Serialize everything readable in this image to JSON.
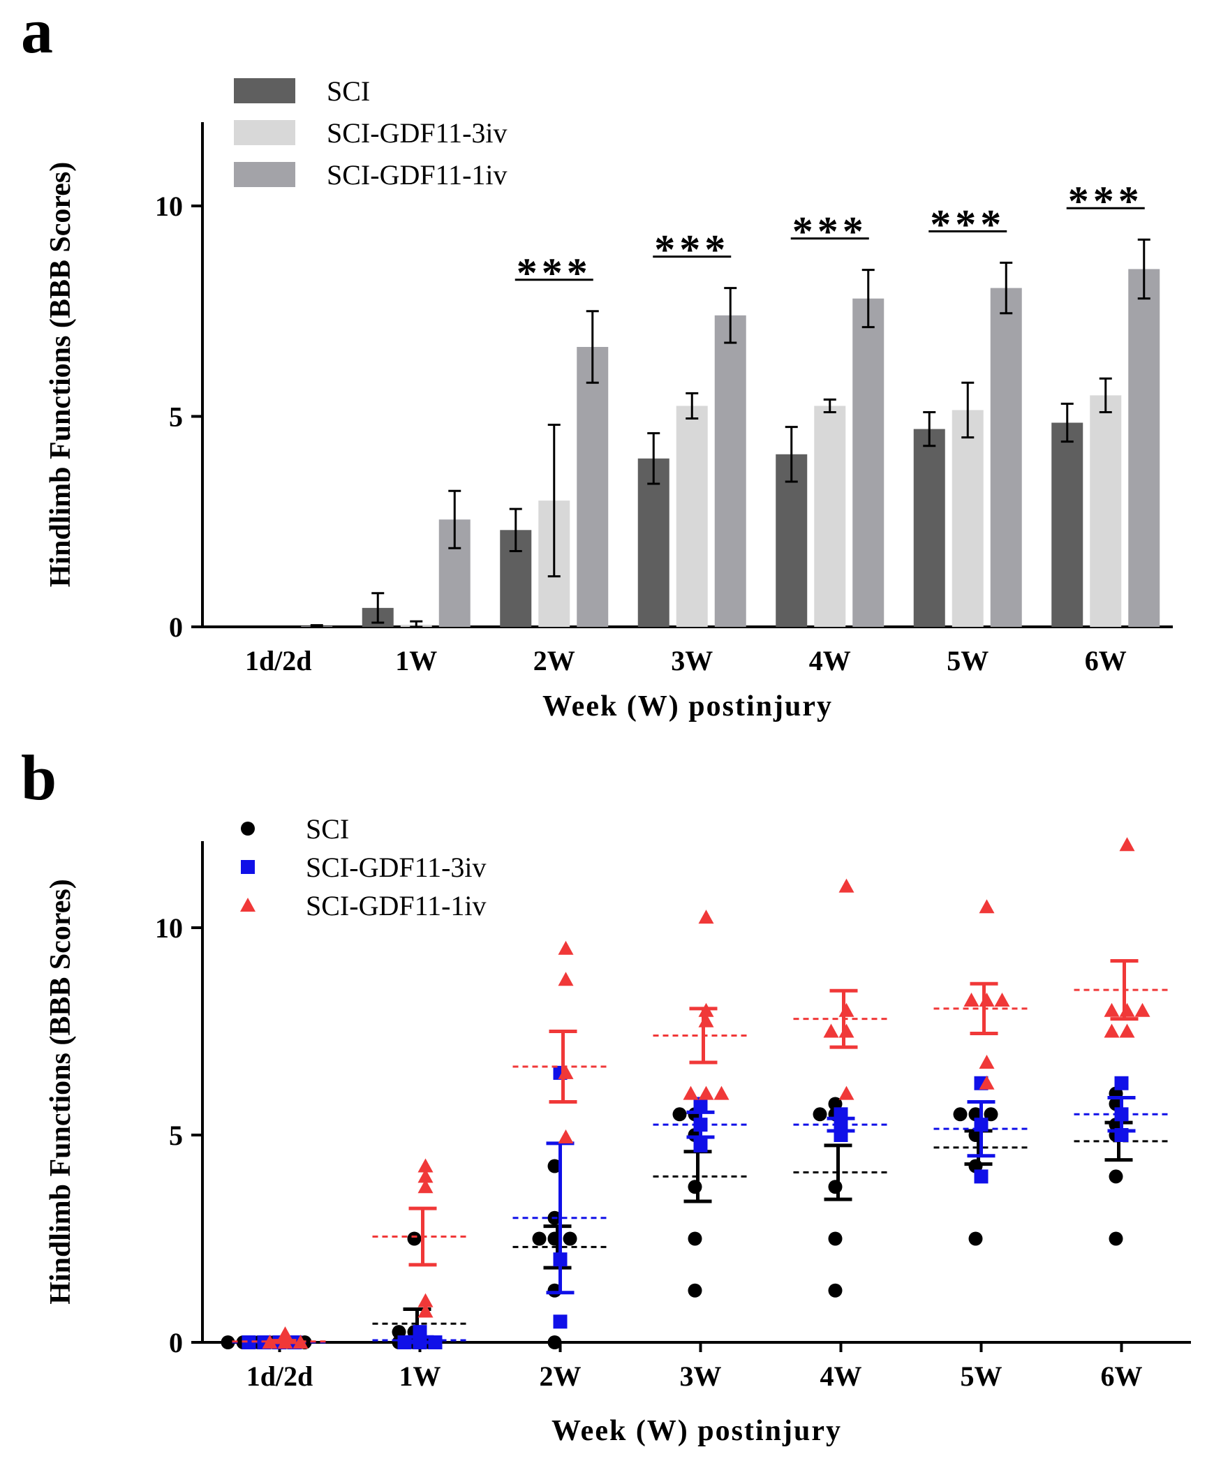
{
  "chart_data": [
    {
      "panel": "a",
      "type": "bar",
      "categories": [
        "1d/2d",
        "1W",
        "2W",
        "3W",
        "4W",
        "5W",
        "6W"
      ],
      "series": [
        {
          "name": "SCI",
          "color": "#5f5f5f",
          "values": [
            0,
            0.45,
            2.3,
            4.0,
            4.1,
            4.7,
            4.85
          ],
          "errors": [
            0,
            0.35,
            0.5,
            0.6,
            0.65,
            0.4,
            0.45
          ]
        },
        {
          "name": "SCI-GDF11-3iv",
          "color": "#d8d8d8",
          "values": [
            0,
            0.05,
            3.0,
            5.25,
            5.25,
            5.15,
            5.5
          ],
          "errors": [
            0,
            0.08,
            1.8,
            0.3,
            0.15,
            0.65,
            0.4
          ]
        },
        {
          "name": "SCI-GDF11-1iv",
          "color": "#a3a3a8",
          "values": [
            0.02,
            2.55,
            6.65,
            7.4,
            7.8,
            8.05,
            8.5
          ],
          "errors": [
            0.02,
            0.68,
            0.85,
            0.65,
            0.68,
            0.6,
            0.7
          ]
        }
      ],
      "significance": [
        {
          "category": "2W",
          "label": "***"
        },
        {
          "category": "3W",
          "label": "***"
        },
        {
          "category": "4W",
          "label": "***"
        },
        {
          "category": "5W",
          "label": "***"
        },
        {
          "category": "6W",
          "label": "***"
        }
      ],
      "ylabel": "Hindlimb Functions (BBB Scores)",
      "xlabel": "Week (W) postinjury",
      "ylim": [
        0,
        12
      ],
      "yticks": [
        0,
        5,
        10
      ],
      "legend_position": "top-left"
    },
    {
      "panel": "b",
      "type": "scatter",
      "categories": [
        "1d/2d",
        "1W",
        "2W",
        "3W",
        "4W",
        "5W",
        "6W"
      ],
      "series": [
        {
          "name": "SCI",
          "color": "#000000",
          "marker": "circle",
          "points": [
            [
              0,
              0
            ],
            [
              0,
              0
            ],
            [
              0,
              0
            ],
            [
              0,
              0
            ],
            [
              0,
              0
            ],
            [
              0,
              0
            ],
            [
              0.25,
              0
            ],
            [
              0,
              0
            ],
            [
              0,
              0
            ],
            [
              0,
              0
            ],
            [
              2.5,
              0
            ],
            [
              0.25,
              0
            ],
            [
              2.5,
              0
            ],
            [
              2.5,
              0
            ],
            [
              3.0,
              0
            ],
            [
              2.5,
              0
            ],
            [
              1.25,
              0
            ],
            [
              0,
              0
            ],
            [
              4.25,
              0
            ],
            [
              5.5,
              0
            ],
            [
              5.5,
              0
            ],
            [
              5.0,
              0
            ],
            [
              3.75,
              0
            ],
            [
              2.5,
              0
            ],
            [
              1.25,
              0
            ],
            [
              5.5,
              0
            ],
            [
              5.75,
              0
            ],
            [
              5.5,
              0
            ],
            [
              3.75,
              0
            ],
            [
              2.5,
              0
            ],
            [
              1.25,
              0
            ],
            [
              5.5,
              0
            ],
            [
              5.5,
              0
            ],
            [
              5.0,
              0
            ],
            [
              5.5,
              0
            ],
            [
              4.25,
              0
            ],
            [
              2.5,
              0
            ],
            [
              6.0,
              0
            ],
            [
              5.75,
              0
            ],
            [
              5.25,
              0
            ],
            [
              5.0,
              0
            ],
            [
              4.0,
              0
            ],
            [
              2.5,
              0
            ]
          ],
          "point_groups": [
            [
              0,
              0,
              0,
              0,
              0,
              0
            ],
            [
              0.25,
              0,
              0,
              0,
              2.5,
              0.25
            ],
            [
              2.5,
              2.5,
              3.0,
              2.5,
              1.25,
              0,
              4.25
            ],
            [
              5.5,
              5.5,
              5.0,
              3.75,
              2.5,
              1.25
            ],
            [
              5.5,
              5.75,
              5.5,
              3.75,
              2.5,
              1.25
            ],
            [
              5.5,
              5.5,
              5.0,
              5.5,
              4.25,
              2.5
            ],
            [
              6.0,
              5.75,
              5.25,
              5.0,
              4.0,
              2.5
            ]
          ],
          "mean": [
            0,
            0.45,
            2.3,
            4.0,
            4.1,
            4.7,
            4.85
          ],
          "sem": [
            0,
            0.35,
            0.5,
            0.6,
            0.65,
            0.4,
            0.45
          ]
        },
        {
          "name": "SCI-GDF11-3iv",
          "color": "#1010e8",
          "marker": "square",
          "point_groups": [
            [
              0,
              0,
              0,
              0
            ],
            [
              0.25,
              0,
              0,
              0
            ],
            [
              6.5,
              2.0,
              0.5
            ],
            [
              5.75,
              5.25,
              4.75
            ],
            [
              5.5,
              5.25,
              5.0
            ],
            [
              6.25,
              5.25,
              4.0
            ],
            [
              6.25,
              5.5,
              5.0
            ]
          ],
          "mean": [
            0,
            0.05,
            3.0,
            5.25,
            5.25,
            5.15,
            5.5
          ],
          "sem": [
            0,
            0.08,
            1.8,
            0.3,
            0.15,
            0.65,
            0.4
          ]
        },
        {
          "name": "SCI-GDF11-1iv",
          "color": "#f03838",
          "marker": "triangle",
          "point_groups": [
            [
              0.2,
              0,
              0,
              0
            ],
            [
              4.25,
              4.0,
              3.75,
              1.0,
              0.75
            ],
            [
              9.5,
              8.75,
              6.5,
              4.95
            ],
            [
              10.25,
              8.0,
              7.75,
              6.0,
              6.0,
              6.0
            ],
            [
              11.0,
              8.0,
              7.5,
              7.5,
              6.0
            ],
            [
              10.5,
              8.25,
              8.25,
              8.25,
              6.75,
              6.25
            ],
            [
              12.0,
              8.0,
              8.0,
              8.0,
              7.5,
              7.5
            ]
          ],
          "mean": [
            0.02,
            2.55,
            6.65,
            7.4,
            7.8,
            8.05,
            8.5
          ],
          "sem": [
            0.02,
            0.68,
            0.85,
            0.65,
            0.68,
            0.6,
            0.7
          ]
        }
      ],
      "ylabel": "Hindlimb Functions (BBB Scores)",
      "xlabel": "Week (W) postinjury",
      "ylim": [
        0,
        12
      ],
      "yticks": [
        0,
        5,
        10
      ],
      "legend_position": "top-left"
    }
  ]
}
